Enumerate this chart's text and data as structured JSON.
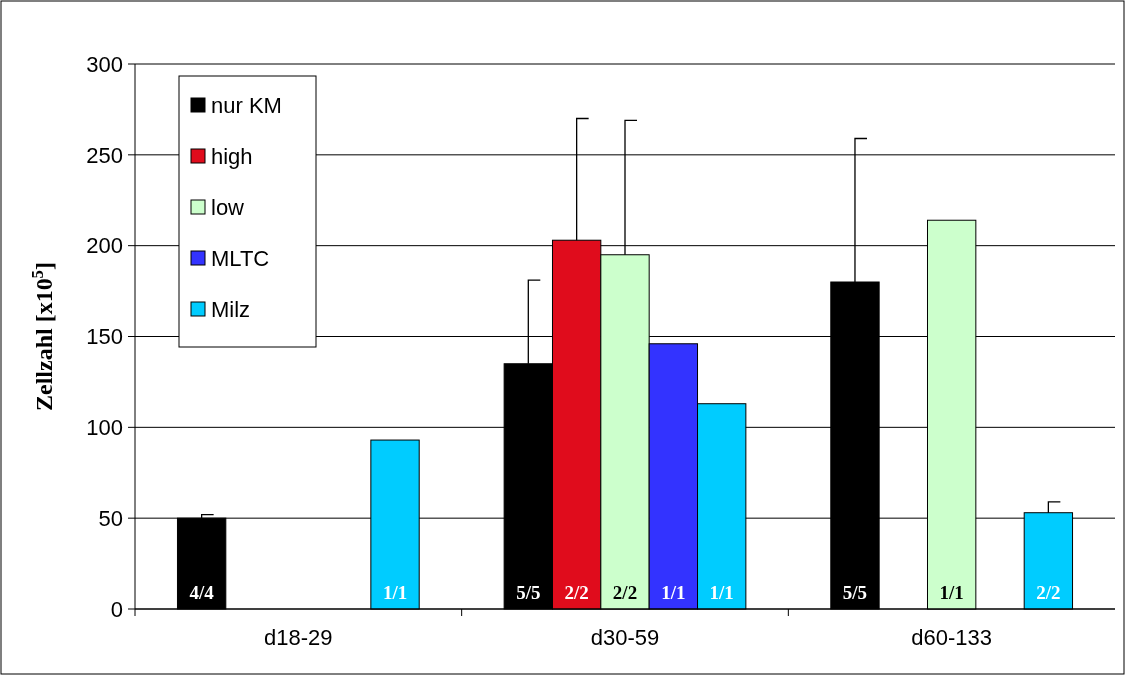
{
  "chart_data": {
    "type": "bar",
    "ylabel": "Zellzahl [x10$^{5}$]",
    "categories": [
      "d18-29",
      "d30-59",
      "d60-133"
    ],
    "series": [
      {
        "name": "nur KM",
        "color": "#000000",
        "values": [
          50,
          135,
          180
        ],
        "errors": [
          [
            50,
            52
          ],
          [
            135,
            181
          ],
          [
            180,
            259
          ]
        ]
      },
      {
        "name": "high",
        "color": "#e00c1c",
        "values": [
          null,
          203,
          null
        ],
        "errors": [
          null,
          [
            203,
            270
          ],
          null
        ]
      },
      {
        "name": "low",
        "color": "#ccffcc",
        "values": [
          null,
          195,
          214
        ],
        "errors": [
          null,
          [
            195,
            269
          ],
          null
        ]
      },
      {
        "name": "MLTC",
        "color": "#3333ff",
        "values": [
          null,
          146,
          null
        ]
      },
      {
        "name": "Milz",
        "color": "#00ccff",
        "values": [
          93,
          113,
          53
        ],
        "errors": [
          null,
          null,
          [
            53,
            59
          ]
        ]
      }
    ],
    "annotations": [
      "4/4",
      "1/1",
      "5/5",
      "2/2",
      "2/2",
      "1/1",
      "1/1",
      "5/5",
      "1/1",
      "2/2"
    ],
    "ylim": [
      0,
      300
    ],
    "yticks": [
      0,
      50,
      100,
      150,
      200,
      250,
      300
    ],
    "grid": "y",
    "legend": "top left"
  }
}
